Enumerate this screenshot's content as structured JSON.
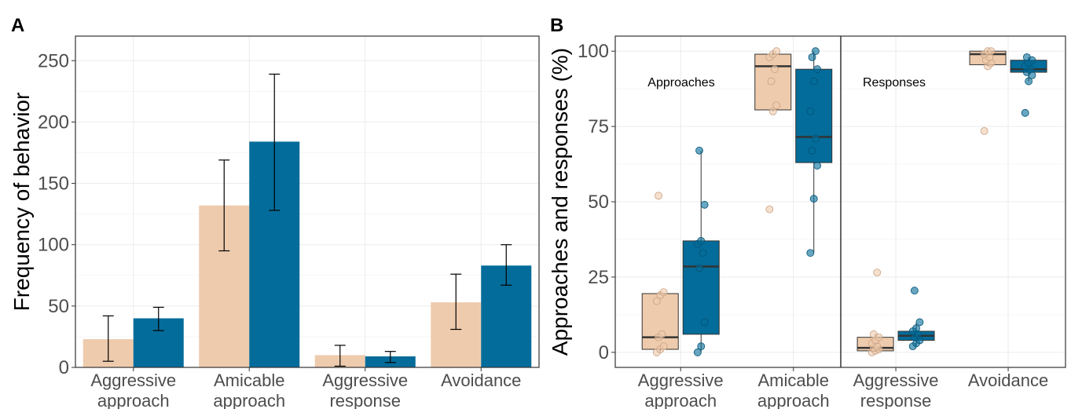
{
  "colors": {
    "group1": "#eecbad",
    "group2": "#046c9a",
    "grid": "#ebebeb",
    "border": "#333333"
  },
  "panels": {
    "a_label": "A",
    "b_label": "B"
  },
  "chart_data": [
    {
      "type": "bar",
      "panel": "A",
      "ylabel": "Frequency of behavior",
      "ylim": [
        0,
        270
      ],
      "yticks": [
        0,
        50,
        100,
        150,
        200,
        250
      ],
      "categories": [
        [
          "Aggressive",
          "approach"
        ],
        [
          "Amicable",
          "approach"
        ],
        [
          "Aggressive",
          "response"
        ],
        [
          "Avoidance"
        ]
      ],
      "series": [
        {
          "values": [
            23,
            132,
            10,
            53
          ],
          "err_low": [
            5,
            95,
            1,
            31
          ],
          "err_high": [
            42,
            169,
            18,
            76
          ],
          "color": "#eecbad"
        },
        {
          "values": [
            40,
            184,
            9,
            83
          ],
          "err_low": [
            30,
            128,
            4,
            67
          ],
          "err_high": [
            49,
            239,
            13,
            100
          ],
          "color": "#046c9a"
        }
      ],
      "grid": true
    },
    {
      "type": "box",
      "panel": "B",
      "ylabel": "Approaches and responses (%)",
      "ylim": [
        -5,
        105
      ],
      "yticks": [
        0,
        25,
        50,
        75,
        100
      ],
      "facets": [
        "Approaches",
        "Responses"
      ],
      "categories": [
        [
          "Aggressive",
          "approach"
        ],
        [
          "Amicable",
          "approach"
        ],
        [
          "Aggressive",
          "response"
        ],
        [
          "Avoidance"
        ]
      ],
      "series": [
        {
          "color": "#eecbad",
          "boxes": [
            {
              "min": 0,
              "q1": 1,
              "median": 5,
              "q3": 19.5,
              "max": 20,
              "points": [
                0,
                1,
                2,
                5,
                6,
                17,
                19,
                20,
                52
              ]
            },
            {
              "min": 80,
              "q1": 80.5,
              "median": 95,
              "q3": 99,
              "max": 100,
              "points": [
                47.5,
                80,
                82,
                90,
                94,
                98,
                99,
                100
              ]
            },
            {
              "min": 0,
              "q1": 0.5,
              "median": 1.5,
              "q3": 5,
              "max": 6,
              "points": [
                0,
                0.5,
                1,
                1.5,
                2,
                3,
                4,
                5,
                6,
                26.5
              ]
            },
            {
              "min": 95,
              "q1": 95.5,
              "median": 99,
              "q3": 100,
              "max": 100,
              "points": [
                73.5,
                95,
                96,
                97,
                98,
                99,
                100,
                100
              ]
            }
          ]
        },
        {
          "color": "#046c9a",
          "boxes": [
            {
              "min": 0,
              "q1": 6,
              "median": 28.5,
              "q3": 37,
              "max": 67,
              "points": [
                0,
                2,
                10,
                28,
                33,
                36,
                37,
                49,
                67
              ]
            },
            {
              "min": 33,
              "q1": 63,
              "median": 71.5,
              "q3": 94,
              "max": 100,
              "points": [
                33,
                51,
                62,
                67,
                71,
                80,
                90,
                94,
                98,
                100
              ]
            },
            {
              "min": 2,
              "q1": 4,
              "median": 5.5,
              "q3": 7,
              "max": 10,
              "points": [
                2,
                3,
                4,
                5,
                6,
                7,
                8,
                10,
                20.5
              ]
            },
            {
              "min": 90,
              "q1": 93,
              "median": 94,
              "q3": 97,
              "max": 98,
              "points": [
                79.5,
                90,
                92,
                93,
                94,
                95,
                96,
                97,
                98
              ]
            }
          ]
        }
      ],
      "grid": true
    }
  ]
}
